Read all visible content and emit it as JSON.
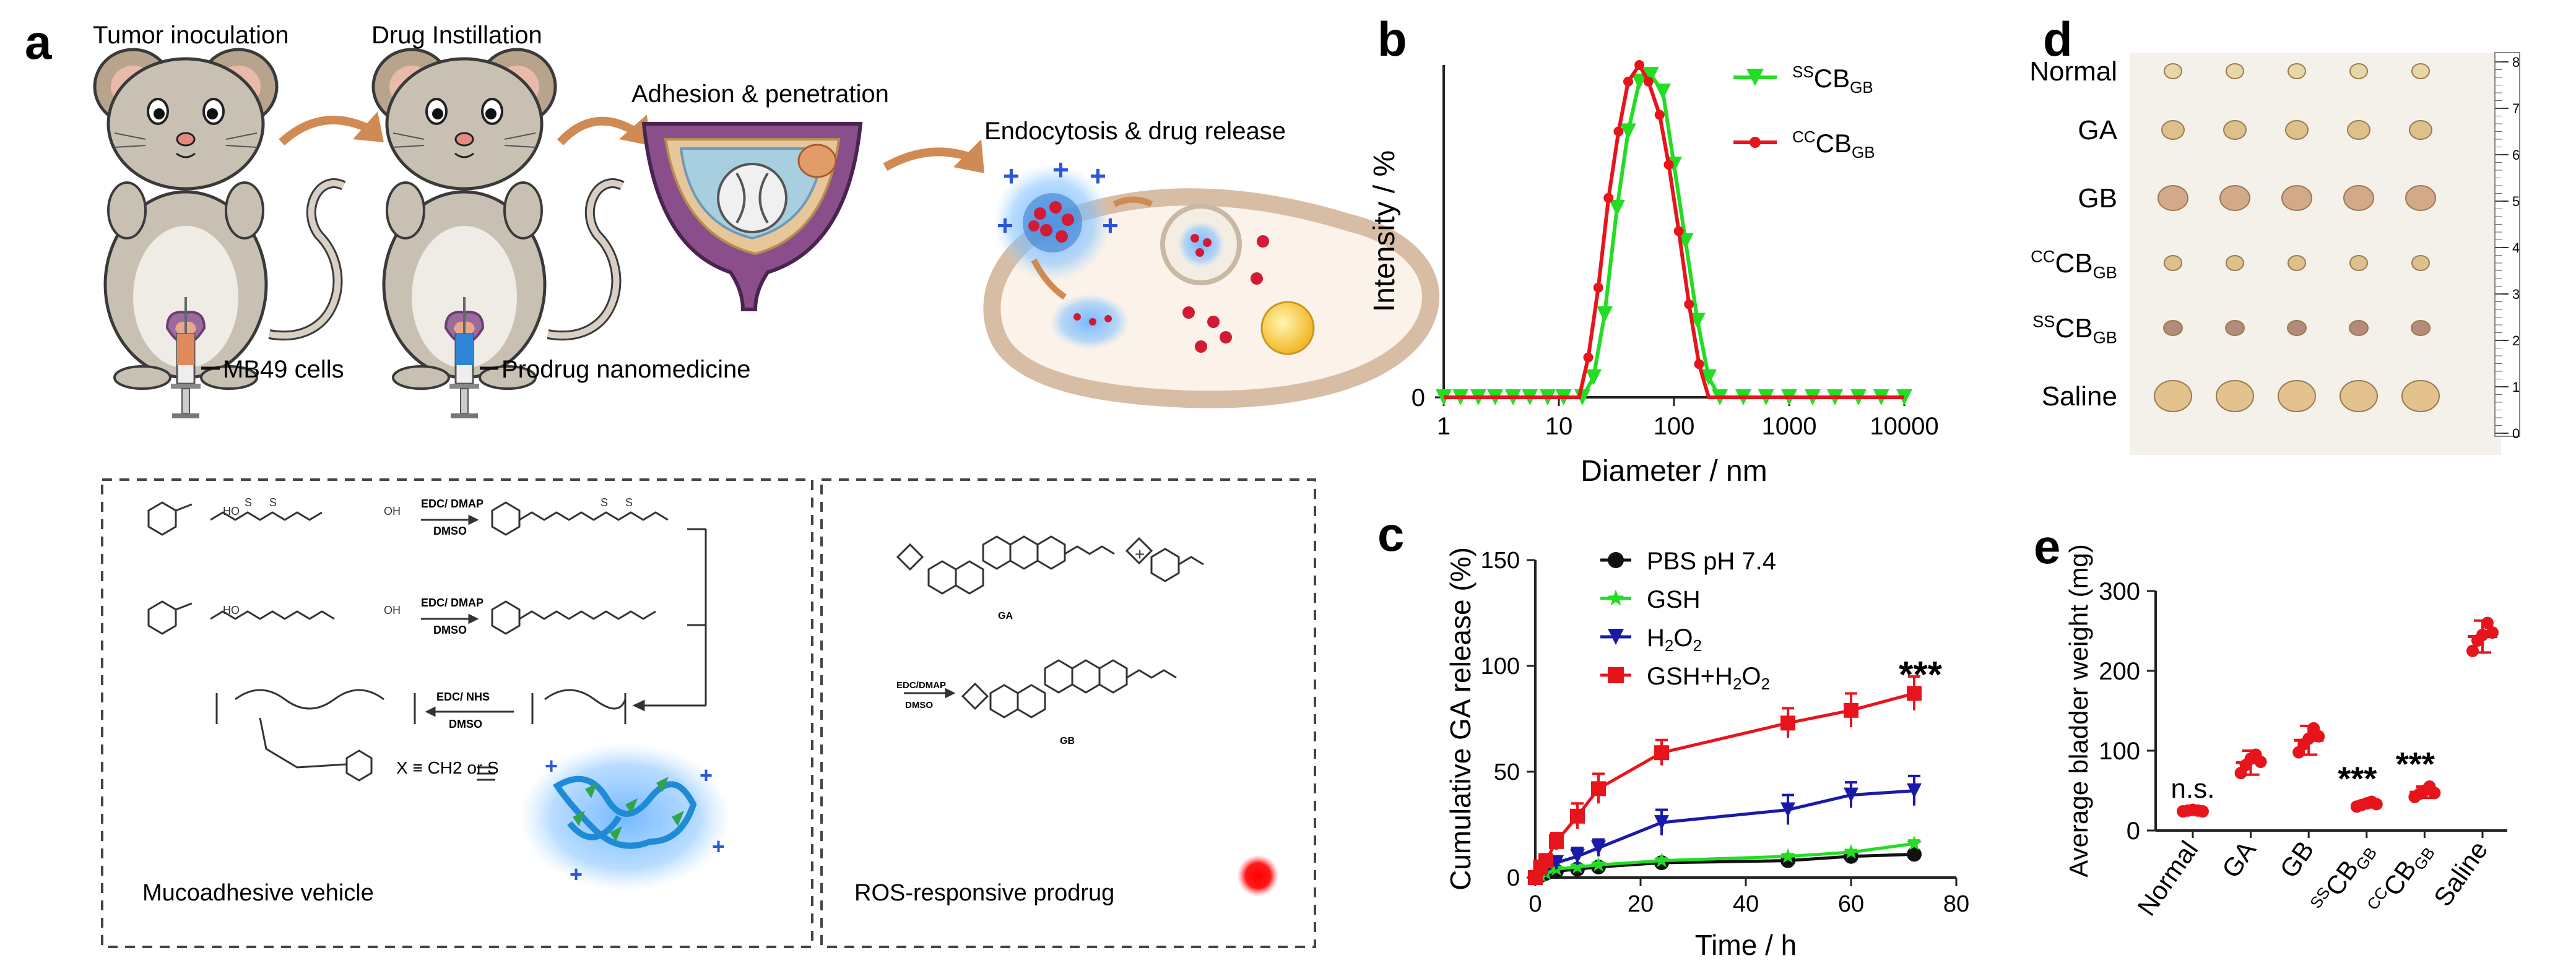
{
  "panels": {
    "a": {
      "letter": "a",
      "steps": [
        "Tumor inoculation",
        "Drug Instillation",
        "Adhesion & penetration",
        "Endocytosis & drug release"
      ],
      "syringe_labels": [
        "MB49 cells",
        "Prodrug nanomedicine"
      ],
      "reagents": [
        "EDC/ DMAP",
        "DMSO",
        "EDC/ DMAP",
        "DMSO",
        "EDC/ NHS",
        "DMSO",
        "EDC/DMAP",
        "DMSO"
      ],
      "linker_note": "X ≡ CH2 or S",
      "molecule_labels": [
        "GA",
        "GB"
      ],
      "box_titles": [
        "Mucoadhesive vehicle",
        "ROS-responsive prodrug"
      ]
    },
    "d": {
      "letter": "d",
      "rows": [
        "Normal",
        "GA",
        "GB",
        "CCCBGB",
        "SSCBGB",
        "Saline"
      ],
      "ruler_ticks": [
        "8",
        "7",
        "6",
        "5",
        "4",
        "3",
        "2",
        "1",
        "0"
      ]
    }
  },
  "colors": {
    "red": "#e8141c",
    "green": "#22dd22",
    "blue": "#1a1aaa",
    "black": "#111111"
  },
  "chart_data": [
    {
      "panel": "b",
      "type": "line",
      "xscale": "log",
      "xlabel": "Diameter / nm",
      "ylabel": "Intensity / %",
      "xlim": [
        1,
        10000
      ],
      "ylim": [
        0,
        100
      ],
      "x_ticks": [
        "1",
        "10",
        "100",
        "1000",
        "10000"
      ],
      "y_ticks": [
        "0"
      ],
      "legend": [
        "SSCBGB",
        "CCCBGB"
      ],
      "series": [
        {
          "name": "SSCBGB",
          "color": "#22dd22",
          "x": [
            1,
            1.4,
            2,
            2.8,
            4,
            5.6,
            8,
            11,
            16,
            20,
            25,
            32,
            40,
            50,
            63,
            80,
            100,
            126,
            160,
            200,
            250,
            400,
            630,
            1000,
            1600,
            2500,
            4000,
            6300,
            10000
          ],
          "y": [
            0,
            0,
            0,
            0,
            0,
            0,
            0,
            0,
            0,
            6,
            25,
            57,
            80,
            95,
            97,
            92,
            70,
            47,
            23,
            6,
            0,
            0,
            0,
            0,
            0,
            0,
            0,
            0,
            0
          ]
        },
        {
          "name": "CCCBGB",
          "color": "#e8141c",
          "x": [
            1,
            10,
            15,
            18,
            22,
            27,
            33,
            40,
            50,
            60,
            75,
            90,
            110,
            135,
            165,
            200,
            1000,
            10000
          ],
          "y": [
            0,
            0,
            0,
            12,
            33,
            60,
            80,
            95,
            100,
            95,
            85,
            70,
            50,
            28,
            10,
            0,
            0,
            0
          ]
        }
      ]
    },
    {
      "panel": "c",
      "type": "line",
      "xlabel": "Time / h",
      "ylabel": "Cumulative GA release (%)",
      "xlim": [
        0,
        80
      ],
      "ylim": [
        0,
        150
      ],
      "x_ticks": [
        "0",
        "20",
        "40",
        "60",
        "80"
      ],
      "y_ticks": [
        "0",
        "50",
        "100",
        "150"
      ],
      "annotation": "***",
      "series": [
        {
          "name": "PBS pH 7.4",
          "color": "#111111",
          "marker": "circle",
          "x": [
            0,
            1,
            2,
            4,
            8,
            12,
            24,
            48,
            60,
            72
          ],
          "y": [
            0,
            1,
            2,
            3,
            4,
            5,
            7,
            8,
            10,
            11
          ],
          "err": [
            0,
            0.5,
            0.5,
            1,
            1,
            1,
            1,
            1.5,
            1.5,
            1.5
          ]
        },
        {
          "name": "GSH",
          "color": "#22dd22",
          "marker": "star",
          "x": [
            0,
            1,
            2,
            4,
            8,
            12,
            24,
            48,
            60,
            72
          ],
          "y": [
            0,
            1,
            2,
            4,
            5,
            6,
            8,
            10,
            12,
            16
          ],
          "err": [
            0,
            0.5,
            0.5,
            1,
            1,
            1,
            1,
            1,
            1,
            1.5
          ]
        },
        {
          "name": "H2O2",
          "color": "#1a1aaa",
          "marker": "triangle-down",
          "x": [
            0,
            1,
            2,
            4,
            8,
            12,
            24,
            48,
            60,
            72
          ],
          "y": [
            0,
            2,
            4,
            7,
            10,
            14,
            26,
            32,
            39,
            41
          ],
          "err": [
            0,
            1,
            2,
            3,
            4,
            4,
            6,
            7,
            6,
            7
          ]
        },
        {
          "name": "GSH+H2O2",
          "color": "#e8141c",
          "marker": "square",
          "x": [
            0,
            1,
            2,
            4,
            8,
            12,
            24,
            48,
            60,
            72
          ],
          "y": [
            0,
            5,
            8,
            17,
            29,
            42,
            59,
            73,
            79,
            87
          ],
          "err": [
            0,
            2,
            3,
            4,
            6,
            7,
            6,
            7,
            8,
            8
          ]
        }
      ]
    },
    {
      "panel": "e",
      "type": "scatter",
      "ylabel": "Average bladder weight (mg)",
      "ylim": [
        0,
        300
      ],
      "y_ticks": [
        "0",
        "100",
        "200",
        "300"
      ],
      "categories": [
        "Normal",
        "GA",
        "GB",
        "SSCBGB",
        "CCCBGB",
        "Saline"
      ],
      "annotations": [
        "n.s.",
        "",
        "",
        "***",
        "***",
        ""
      ],
      "groups": [
        {
          "name": "Normal",
          "mean": 25,
          "sd": 2,
          "points": [
            24,
            25,
            26,
            25,
            24
          ]
        },
        {
          "name": "GA",
          "mean": 85,
          "sd": 15,
          "points": [
            72,
            82,
            90,
            95,
            86
          ]
        },
        {
          "name": "GB",
          "mean": 113,
          "sd": 18,
          "points": [
            98,
            108,
            115,
            128,
            118
          ]
        },
        {
          "name": "SSCBGB",
          "mean": 33,
          "sd": 4,
          "points": [
            30,
            32,
            34,
            36,
            33
          ]
        },
        {
          "name": "CCCBGB",
          "mean": 48,
          "sd": 7,
          "points": [
            42,
            46,
            50,
            55,
            47
          ]
        },
        {
          "name": "Saline",
          "mean": 243,
          "sd": 20,
          "points": [
            225,
            238,
            245,
            260,
            248
          ]
        }
      ]
    }
  ],
  "letters": {
    "b": "b",
    "c": "c",
    "e": "e"
  }
}
